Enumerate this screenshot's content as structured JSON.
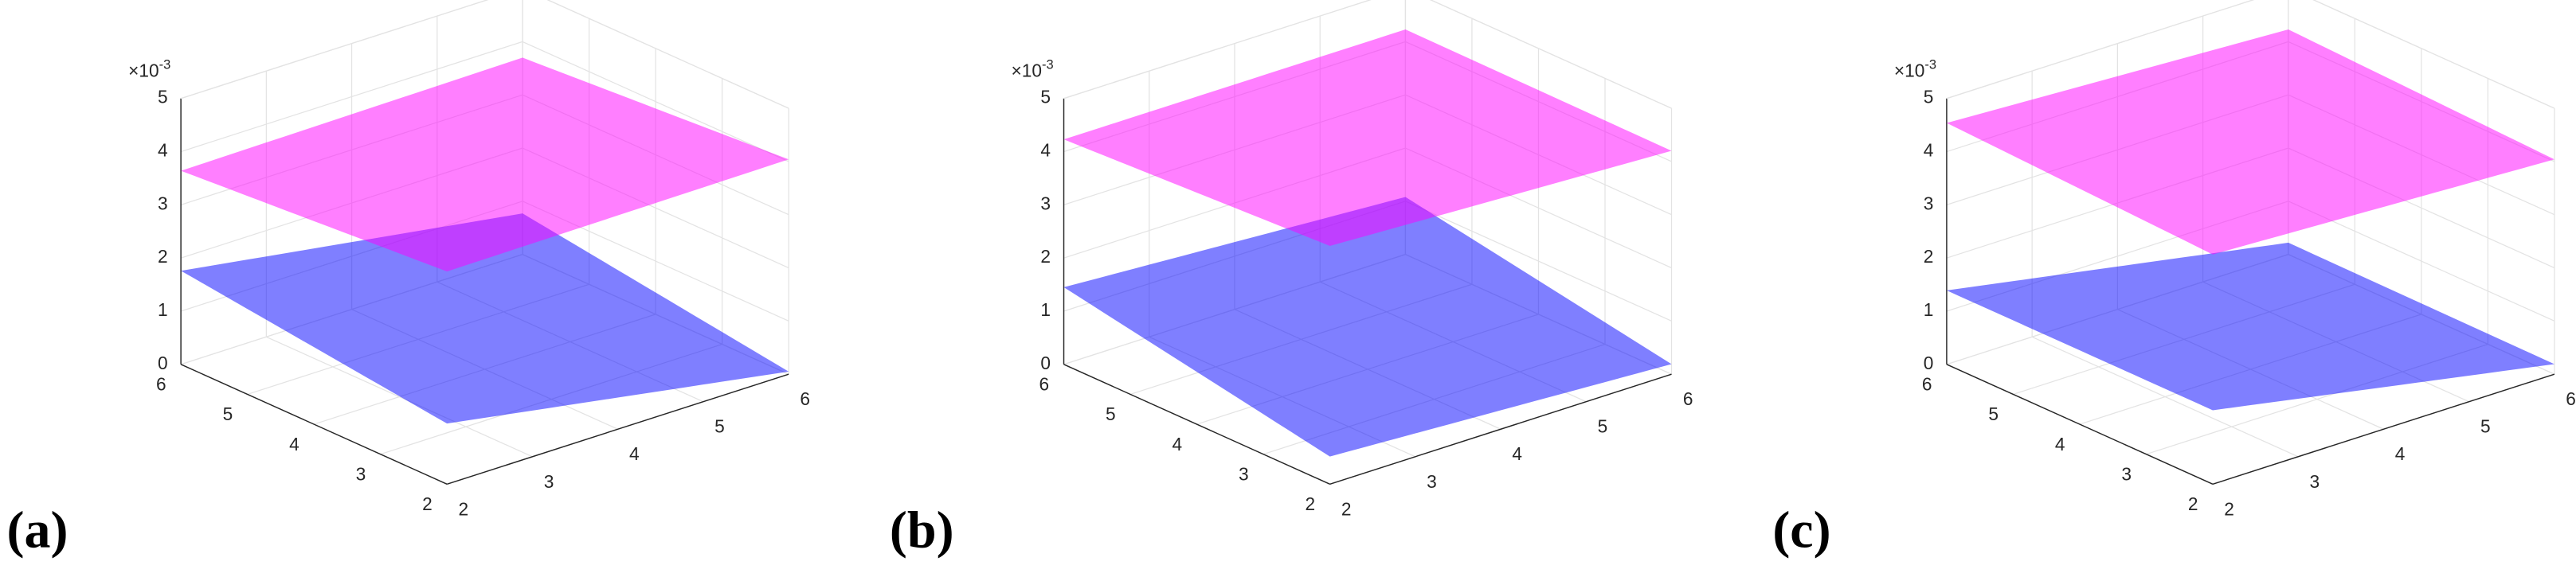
{
  "chart_data": [
    {
      "type": "surface",
      "label": "(a)",
      "zexp_base": "×10",
      "zexp_power": "-3",
      "xlim": [
        2,
        6
      ],
      "ylim": [
        2,
        6
      ],
      "zlim": [
        0,
        5
      ],
      "xticks": [
        2,
        3,
        4,
        5,
        6
      ],
      "yticks": [
        2,
        3,
        4,
        5,
        6
      ],
      "zticks": [
        0,
        1,
        2,
        3,
        4,
        5
      ],
      "series": [
        {
          "color": "#0000ff",
          "x": [
            2,
            6
          ],
          "y": [
            2,
            6
          ],
          "z": [
            [
              1.14,
              0.05
            ],
            [
              1.76,
              0.77
            ]
          ]
        },
        {
          "color": "#ff00ff",
          "x": [
            2,
            6
          ],
          "y": [
            2,
            6
          ],
          "z": [
            [
              4.0,
              4.04
            ],
            [
              3.64,
              3.7
            ]
          ]
        }
      ]
    },
    {
      "type": "surface",
      "label": "(b)",
      "zexp_base": "×10",
      "zexp_power": "-3",
      "xlim": [
        2,
        6
      ],
      "ylim": [
        2,
        6
      ],
      "zlim": [
        0,
        5
      ],
      "xticks": [
        2,
        3,
        4,
        5,
        6
      ],
      "yticks": [
        2,
        3,
        4,
        5,
        6
      ],
      "zticks": [
        0,
        1,
        2,
        3,
        4,
        5
      ],
      "series": [
        {
          "color": "#0000ff",
          "x": [
            2,
            6
          ],
          "y": [
            2,
            6
          ],
          "z": [
            [
              0.52,
              0.19
            ],
            [
              1.45,
              1.08
            ]
          ]
        },
        {
          "color": "#ff00ff",
          "x": [
            2,
            6
          ],
          "y": [
            2,
            6
          ],
          "z": [
            [
              4.48,
              4.2
            ],
            [
              4.23,
              4.23
            ]
          ]
        }
      ]
    },
    {
      "type": "surface",
      "label": "(c)",
      "zexp_base": "×10",
      "zexp_power": "-3",
      "xlim": [
        2,
        6
      ],
      "ylim": [
        2,
        6
      ],
      "zlim": [
        0,
        5
      ],
      "xticks": [
        2,
        3,
        4,
        5,
        6
      ],
      "yticks": [
        2,
        3,
        4,
        5,
        6
      ],
      "zticks": [
        0,
        1,
        2,
        3,
        4,
        5
      ],
      "series": [
        {
          "color": "#0000ff",
          "x": [
            2,
            6
          ],
          "y": [
            2,
            6
          ],
          "z": [
            [
              1.39,
              0.19
            ],
            [
              1.39,
              0.22
            ]
          ]
        },
        {
          "color": "#ff00ff",
          "x": [
            2,
            6
          ],
          "y": [
            2,
            6
          ],
          "z": [
            [
              4.32,
              4.04
            ],
            [
              4.54,
              4.23
            ]
          ]
        }
      ]
    }
  ]
}
